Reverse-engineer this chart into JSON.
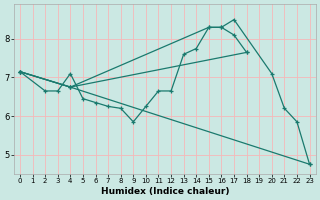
{
  "xlabel": "Humidex (Indice chaleur)",
  "ylabel": "",
  "background_color": "#cbe8e3",
  "grid_color": "#f5b8b8",
  "line_color": "#1a7a6e",
  "xlim": [
    -0.5,
    23.5
  ],
  "ylim": [
    4.5,
    8.9
  ],
  "yticks": [
    5,
    6,
    7,
    8
  ],
  "xticks": [
    0,
    1,
    2,
    3,
    4,
    5,
    6,
    7,
    8,
    9,
    10,
    11,
    12,
    13,
    14,
    15,
    16,
    17,
    18,
    19,
    20,
    21,
    22,
    23
  ],
  "lines": [
    {
      "x": [
        0,
        2,
        3,
        4,
        5,
        6,
        7,
        8,
        9,
        10,
        11,
        12,
        13,
        14,
        15,
        16,
        17,
        20,
        21,
        22,
        23
      ],
      "y": [
        7.15,
        6.65,
        6.65,
        7.1,
        6.45,
        6.35,
        6.25,
        6.2,
        5.85,
        6.25,
        6.65,
        6.65,
        7.6,
        7.75,
        8.3,
        8.3,
        8.5,
        7.1,
        6.2,
        5.85,
        4.75
      ]
    },
    {
      "x": [
        0,
        4,
        18
      ],
      "y": [
        7.15,
        6.75,
        7.65
      ]
    },
    {
      "x": [
        0,
        4,
        15,
        16,
        17,
        18
      ],
      "y": [
        7.15,
        6.75,
        8.3,
        8.3,
        8.1,
        7.65
      ]
    },
    {
      "x": [
        0,
        4,
        23
      ],
      "y": [
        7.15,
        6.75,
        4.75
      ]
    }
  ]
}
